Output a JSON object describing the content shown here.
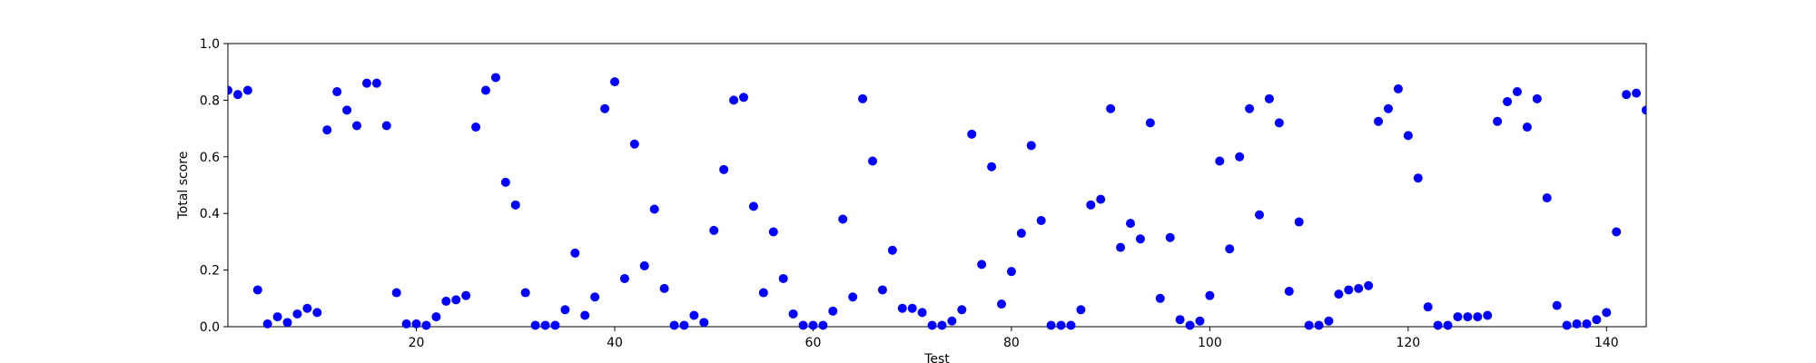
{
  "chart_data": {
    "type": "scatter",
    "title": "",
    "xlabel": "Test",
    "ylabel": "Total score",
    "xlim": [
      1,
      144
    ],
    "ylim": [
      0,
      1.0
    ],
    "xticks": [
      20,
      40,
      60,
      80,
      100,
      120,
      140
    ],
    "xtick_labels": [
      "20",
      "40",
      "60",
      "80",
      "100",
      "120",
      "140"
    ],
    "yticks": [
      0,
      0.2,
      0.4,
      0.6,
      0.8,
      1.0
    ],
    "ytick_labels": [
      "0.0",
      "0.2",
      "0.4",
      "0.6",
      "0.8",
      "1.0"
    ],
    "grid": false,
    "marker_color": "#0000ff",
    "series": [
      {
        "x": [
          1,
          2,
          3,
          4,
          5,
          6,
          7,
          8,
          9,
          10,
          11,
          12,
          13,
          14,
          15,
          16,
          17,
          18,
          19,
          20,
          21,
          22,
          23,
          24,
          25,
          26,
          27,
          28,
          29,
          30,
          31,
          32,
          33,
          34,
          35,
          36,
          37,
          38,
          39,
          40,
          41,
          42,
          43,
          44,
          45,
          46,
          47,
          48,
          49,
          50,
          51,
          52,
          53,
          54,
          55,
          56,
          57,
          58,
          59,
          60,
          61,
          62,
          63,
          64,
          65,
          66,
          67,
          68,
          69,
          70,
          71,
          72,
          73,
          74,
          75,
          76,
          77,
          78,
          79,
          80,
          81,
          82,
          83,
          84,
          85,
          86,
          87,
          88,
          89,
          90,
          91,
          92,
          93,
          94,
          95,
          96,
          97,
          98,
          99,
          100,
          101,
          102,
          103,
          104,
          105,
          106,
          107,
          108,
          109,
          110,
          111,
          112,
          113,
          114,
          115,
          116,
          117,
          118,
          119,
          120,
          121,
          122,
          123,
          124,
          125,
          126,
          127,
          128,
          129,
          130,
          131,
          132,
          133,
          134,
          135,
          136,
          137,
          138,
          139,
          140,
          141,
          142,
          143,
          144
        ],
        "y": [
          0.835,
          0.82,
          0.835,
          0.13,
          0.01,
          0.035,
          0.015,
          0.045,
          0.065,
          0.05,
          0.695,
          0.83,
          0.765,
          0.71,
          0.86,
          0.86,
          0.71,
          0.12,
          0.01,
          0.01,
          0.005,
          0.035,
          0.09,
          0.095,
          0.11,
          0.705,
          0.835,
          0.88,
          0.51,
          0.43,
          0.12,
          0.005,
          0.005,
          0.005,
          0.06,
          0.26,
          0.04,
          0.105,
          0.77,
          0.865,
          0.17,
          0.645,
          0.215,
          0.415,
          0.135,
          0.005,
          0.005,
          0.04,
          0.015,
          0.34,
          0.555,
          0.8,
          0.81,
          0.425,
          0.12,
          0.335,
          0.17,
          0.045,
          0.005,
          0.005,
          0.005,
          0.055,
          0.38,
          0.105,
          0.805,
          0.585,
          0.13,
          0.27,
          0.065,
          0.065,
          0.05,
          0.005,
          0.005,
          0.02,
          0.06,
          0.68,
          0.22,
          0.565,
          0.08,
          0.195,
          0.33,
          0.64,
          0.375,
          0.005,
          0.005,
          0.005,
          0.06,
          0.43,
          0.45,
          0.77,
          0.28,
          0.365,
          0.31,
          0.72,
          0.1,
          0.315,
          0.025,
          0.005,
          0.02,
          0.11,
          0.585,
          0.275,
          0.6,
          0.77,
          0.395,
          0.805,
          0.72,
          0.125,
          0.37,
          0.005,
          0.005,
          0.02,
          0.115,
          0.13,
          0.135,
          0.145,
          0.725,
          0.77,
          0.84,
          0.675,
          0.525,
          0.07,
          0.005,
          0.005,
          0.035,
          0.035,
          0.035,
          0.04,
          0.725,
          0.795,
          0.83,
          0.705,
          0.805,
          0.455,
          0.075,
          0.005,
          0.01,
          0.01,
          0.025,
          0.05,
          0.335,
          0.82,
          0.825,
          0.765
        ]
      }
    ]
  }
}
